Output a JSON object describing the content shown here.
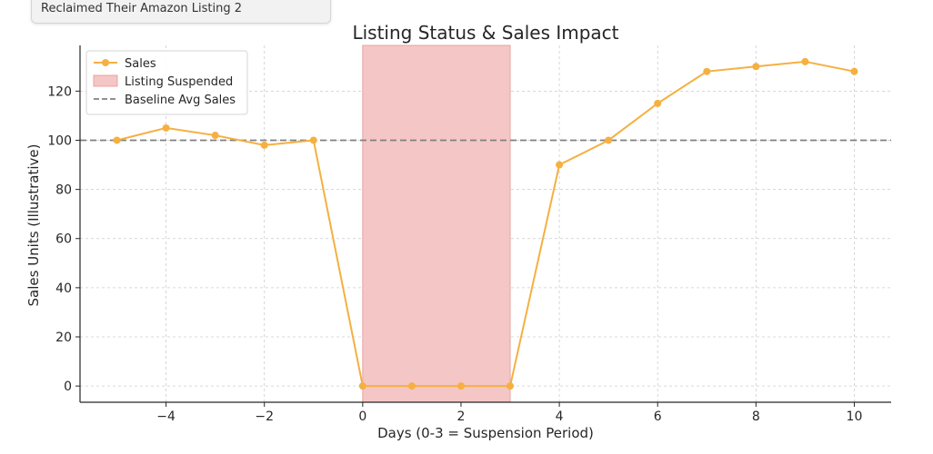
{
  "tab": {
    "label": "Reclaimed Their Amazon Listing 2"
  },
  "chart_data": {
    "type": "line",
    "title": "Listing Status & Sales Impact",
    "xlabel": "Days (0-3 = Suspension Period)",
    "ylabel": "Sales Units (Illustrative)",
    "xlim": [
      -5.75,
      10.75
    ],
    "ylim": [
      -6.6,
      138.6
    ],
    "xticks": [
      -4,
      -2,
      0,
      2,
      4,
      6,
      8,
      10
    ],
    "xtick_labels": [
      "−4",
      "−2",
      "0",
      "2",
      "4",
      "6",
      "8",
      "10"
    ],
    "yticks": [
      0,
      20,
      40,
      60,
      80,
      100,
      120
    ],
    "ytick_labels": [
      "0",
      "20",
      "40",
      "60",
      "80",
      "100",
      "120"
    ],
    "grid": true,
    "legend_position": "top-left",
    "series": [
      {
        "name": "Sales",
        "color": "#f5b041",
        "x": [
          -5,
          -4,
          -3,
          -2,
          -1,
          0,
          1,
          2,
          3,
          4,
          5,
          6,
          7,
          8,
          9,
          10
        ],
        "y": [
          100,
          105,
          102,
          98,
          100,
          0,
          0,
          0,
          0,
          90,
          100,
          115,
          128,
          130,
          132,
          128
        ]
      }
    ],
    "span": {
      "name": "Listing Suspended",
      "x0": 0,
      "x1": 3,
      "color": "#f5c6c6"
    },
    "hline": {
      "name": "Baseline Avg Sales",
      "y": 100,
      "color": "#808080"
    }
  }
}
